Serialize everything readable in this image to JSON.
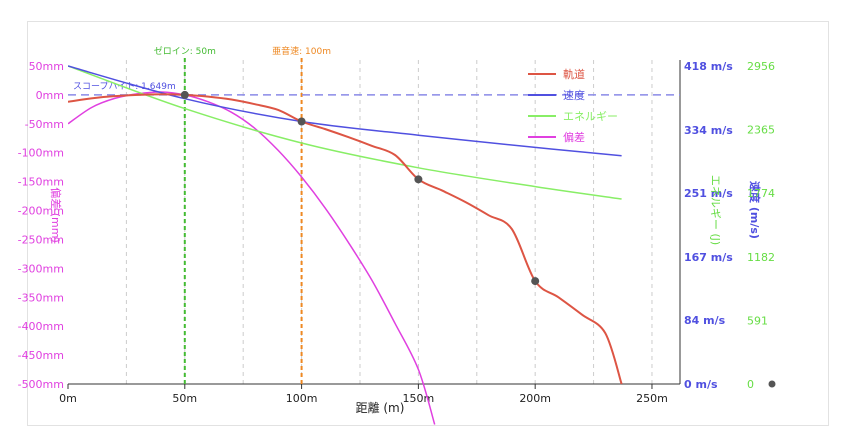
{
  "chart_data": {
    "type": "line",
    "xlabel": "距離 (m)",
    "x_ticks": [
      "0m",
      "50m",
      "100m",
      "150m",
      "200m",
      "250m"
    ],
    "x_tick_values": [
      0,
      50,
      100,
      150,
      200,
      250
    ],
    "xlim": [
      0,
      262
    ],
    "left_axis": {
      "label": "偏差 (mm)",
      "color": "#e040e0",
      "ticks": [
        "50mm",
        "0mm",
        "-50mm",
        "-100mm",
        "-150mm",
        "-200mm",
        "-250mm",
        "-300mm",
        "-350mm",
        "-400mm",
        "-450mm",
        "-500mm"
      ],
      "tick_values": [
        50,
        0,
        -50,
        -100,
        -150,
        -200,
        -250,
        -300,
        -350,
        -400,
        -450,
        -500
      ],
      "ylim": [
        -500,
        50
      ]
    },
    "right_axis_1": {
      "label": "速度 (m/s)",
      "color": "#5050e0",
      "ticks": [
        "418 m/s",
        "334 m/s",
        "251 m/s",
        "167 m/s",
        "84 m/s",
        "0 m/s"
      ],
      "tick_values": [
        418,
        334,
        251,
        167,
        84,
        0
      ],
      "ylim": [
        0,
        418
      ]
    },
    "right_axis_2": {
      "label": "エネルギー (J)",
      "color": "#66dd44",
      "ticks": [
        "2956",
        "2365",
        "1774",
        "1182",
        "591",
        "0"
      ],
      "tick_values": [
        2956,
        2365,
        1774,
        1182,
        591,
        0
      ],
      "ylim": [
        0,
        2956
      ]
    },
    "annotations": {
      "zero_label": "ゼロイン: 50m",
      "zero_x": 50,
      "zero_color": "#44bb33",
      "subsonic_label": "亜音速: 100m",
      "subsonic_x": 100,
      "subsonic_color": "#ee8822",
      "scope_label": "スコープハイト: 1.649m",
      "scope_color": "#5050e0"
    },
    "legend": {
      "position": "top-right",
      "items": [
        {
          "name": "軌道",
          "color": "#dd5544"
        },
        {
          "name": "速度",
          "color": "#5050e0"
        },
        {
          "name": "エネルギー",
          "color": "#88ee66"
        },
        {
          "name": "偏差",
          "color": "#e040e0"
        }
      ]
    },
    "series": [
      {
        "name": "軌道",
        "color": "#dd5544",
        "axis": "left",
        "x": [
          0,
          10,
          20,
          30,
          40,
          50,
          60,
          70,
          80,
          90,
          100,
          110,
          120,
          130,
          140,
          150,
          160,
          170,
          180,
          190,
          200,
          210,
          220,
          230,
          237
        ],
        "y": [
          -12,
          -6,
          -2,
          0,
          1,
          0,
          -3,
          -8,
          -16,
          -26,
          -46,
          -59,
          -73,
          -88,
          -104,
          -146,
          -165,
          -185,
          -208,
          -232,
          -322,
          -350,
          -380,
          -412,
          -500
        ]
      },
      {
        "name": "速度",
        "color": "#5050e0",
        "axis": "right_1",
        "x": [
          0,
          50,
          100,
          150,
          200,
          237
        ],
        "y": [
          418,
          375,
          345,
          327,
          311,
          300
        ]
      },
      {
        "name": "エネルギー",
        "color": "#88ee66",
        "axis": "right_2",
        "x": [
          0,
          50,
          100,
          150,
          200,
          237
        ],
        "y": [
          2956,
          2560,
          2240,
          2010,
          1835,
          1720
        ]
      },
      {
        "name": "偏差",
        "color": "#e040e0",
        "axis": "left",
        "x": [
          0,
          10,
          20,
          30,
          40,
          50,
          60,
          70,
          80,
          90,
          100,
          110,
          120,
          130,
          140,
          150,
          157
        ],
        "y": [
          -50,
          -22,
          -6,
          2,
          5,
          0,
          -12,
          -30,
          -58,
          -96,
          -142,
          -195,
          -255,
          -320,
          -395,
          -475,
          -570
        ]
      }
    ],
    "markers": [
      {
        "x": 50,
        "y": 0
      },
      {
        "x": 100,
        "y": -46
      },
      {
        "x": 150,
        "y": -146
      },
      {
        "x": 200,
        "y": -322
      }
    ],
    "marker_color": "#555555",
    "grid": true
  }
}
